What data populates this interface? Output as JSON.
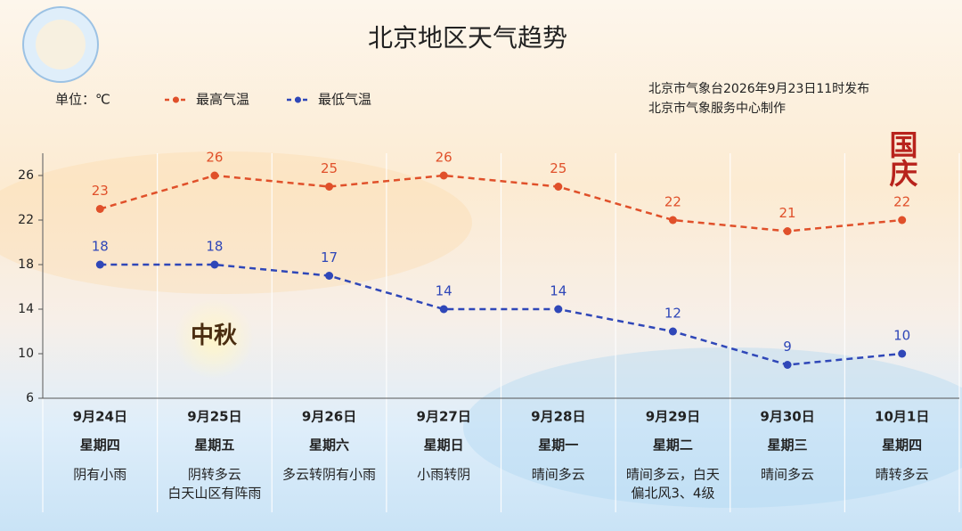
{
  "chart_data": {
    "type": "line",
    "title": "北京地区天气趋势",
    "unit_label": "单位：℃",
    "source": [
      "北京市气象台2026年9月23日11时发布",
      "北京市气象服务中心制作"
    ],
    "annotations": [
      "国庆",
      "中秋"
    ],
    "categories": [
      "9月24日",
      "9月25日",
      "9月26日",
      "9月27日",
      "9月28日",
      "9月29日",
      "9月30日",
      "10月1日"
    ],
    "weekdays": [
      "星期四",
      "星期五",
      "星期六",
      "星期日",
      "星期一",
      "星期二",
      "星期三",
      "星期四"
    ],
    "weather": [
      [
        "阴有小雨"
      ],
      [
        "阴转多云",
        "白天山区有阵雨"
      ],
      [
        "多云转阴有小雨"
      ],
      [
        "小雨转阴"
      ],
      [
        "晴间多云"
      ],
      [
        "晴间多云，白天",
        "偏北风3、4级"
      ],
      [
        "晴间多云"
      ],
      [
        "晴转多云"
      ]
    ],
    "series": [
      {
        "name": "最高气温",
        "color": "#e0502a",
        "values": [
          23,
          26,
          25,
          26,
          25,
          22,
          21,
          22
        ]
      },
      {
        "name": "最低气温",
        "color": "#2f47b8",
        "values": [
          18,
          18,
          17,
          14,
          14,
          12,
          9,
          10
        ]
      }
    ],
    "ylim": [
      6,
      28
    ],
    "yticks": [
      6,
      10,
      14,
      18,
      22,
      26
    ],
    "legend": "top-left"
  }
}
